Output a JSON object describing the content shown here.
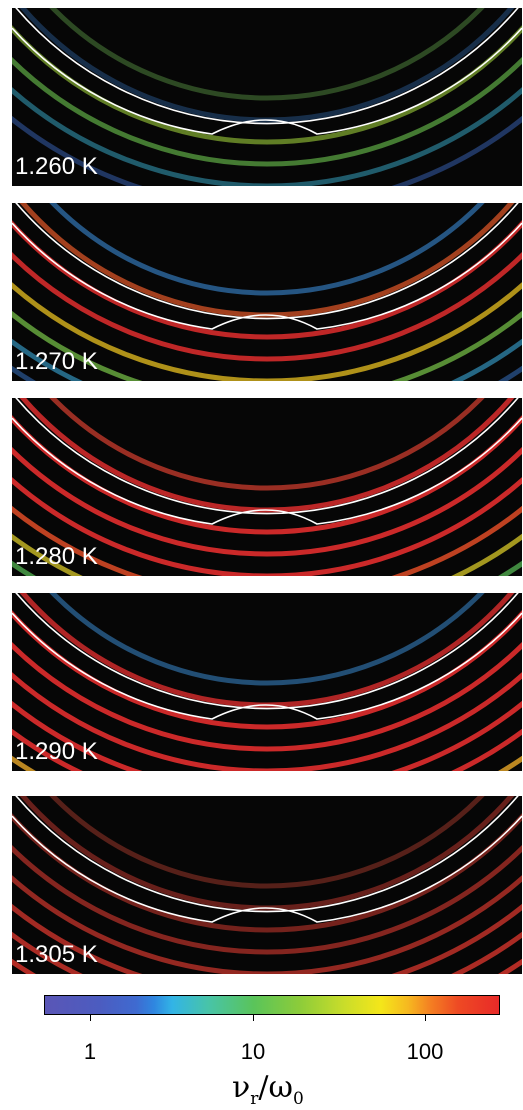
{
  "panels": [
    {
      "label": "1.260 K",
      "rings": [
        {
          "c": "#6ab050",
          "o": 0.4
        },
        {
          "c": "#3a7bc8",
          "o": 0.35
        },
        {
          "c": "#9ccd3a",
          "o": 0.6
        },
        {
          "c": "#6ec850",
          "o": 0.6
        },
        {
          "c": "#3ab0d0",
          "o": 0.5
        },
        {
          "c": "#4070d0",
          "o": 0.45
        }
      ]
    },
    {
      "label": "1.270 K",
      "rings": [
        {
          "c": "#3a8ad6",
          "o": 0.6
        },
        {
          "c": "#e65a2a",
          "o": 0.7
        },
        {
          "c": "#ee3030",
          "o": 0.8
        },
        {
          "c": "#ee3030",
          "o": 0.8
        },
        {
          "c": "#e8c020",
          "o": 0.75
        },
        {
          "c": "#7ac84a",
          "o": 0.7
        },
        {
          "c": "#3aa8d8",
          "o": 0.6
        },
        {
          "c": "#3a7ad0",
          "o": 0.5
        }
      ]
    },
    {
      "label": "1.280 K",
      "rings": [
        {
          "c": "#d84030",
          "o": 0.7
        },
        {
          "c": "#e83030",
          "o": 0.8
        },
        {
          "c": "#ee3030",
          "o": 0.85
        },
        {
          "c": "#ee3030",
          "o": 0.85
        },
        {
          "c": "#ee3030",
          "o": 0.85
        },
        {
          "c": "#ec5028",
          "o": 0.8
        },
        {
          "c": "#d8c828",
          "o": 0.75
        },
        {
          "c": "#5ac058",
          "o": 0.7
        },
        {
          "c": "#3a90d8",
          "o": 0.6
        }
      ]
    },
    {
      "label": "1.290 K",
      "rings": [
        {
          "c": "#3a8ad0",
          "o": 0.55
        },
        {
          "c": "#e83030",
          "o": 0.75
        },
        {
          "c": "#ee3030",
          "o": 0.85
        },
        {
          "c": "#ee3030",
          "o": 0.85
        },
        {
          "c": "#ee3030",
          "o": 0.85
        },
        {
          "c": "#ee3030",
          "o": 0.85
        },
        {
          "c": "#ee3030",
          "o": 0.85
        },
        {
          "c": "#e8a828",
          "o": 0.8
        },
        {
          "c": "#5ac058",
          "o": 0.7
        },
        {
          "c": "#3a90d8",
          "o": 0.6
        }
      ]
    },
    {
      "label": "1.305 K",
      "rings": [
        {
          "c": "#b84030",
          "o": 0.45
        },
        {
          "c": "#c83a30",
          "o": 0.5
        },
        {
          "c": "#d03a30",
          "o": 0.55
        },
        {
          "c": "#d83a30",
          "o": 0.6
        },
        {
          "c": "#e03a30",
          "o": 0.65
        },
        {
          "c": "#e63a30",
          "o": 0.7
        },
        {
          "c": "#ea3a30",
          "o": 0.72
        },
        {
          "c": "#ee3a30",
          "o": 0.75
        },
        {
          "c": "#ee3a30",
          "o": 0.75
        },
        {
          "c": "#ee3a30",
          "o": 0.75
        }
      ]
    }
  ],
  "colorbar": {
    "ticks": [
      "1",
      "10",
      "100"
    ],
    "title_main_1": "ν",
    "title_sub_1": "r",
    "title_slash": "/",
    "title_main_2": "ω",
    "title_sub_2": "0"
  }
}
